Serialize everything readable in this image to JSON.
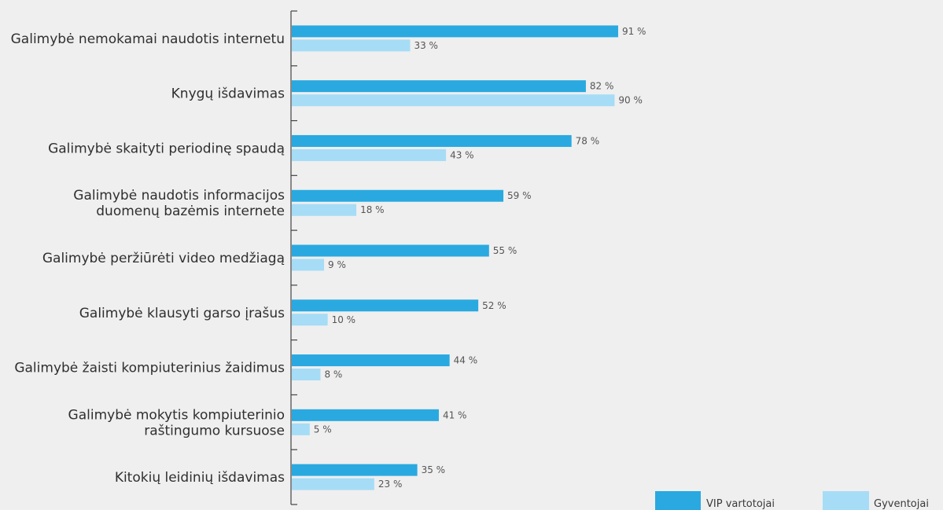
{
  "chart_data": {
    "type": "bar",
    "orientation": "horizontal",
    "categories": [
      [
        "Galimybė nemokamai naudotis internetu"
      ],
      [
        "Knygų išdavimas"
      ],
      [
        "Galimybė skaityti periodinę spaudą"
      ],
      [
        "Galimybė naudotis informacijos",
        "duomenų bazėmis internete"
      ],
      [
        "Galimybė peržiūrėti video medžiagą"
      ],
      [
        "Galimybė klausyti garso įrašus"
      ],
      [
        "Galimybė žaisti kompiuterinius žaidimus"
      ],
      [
        "Galimybė mokytis kompiuterinio",
        "raštingumo kursuose"
      ],
      [
        "Kitokių leidinių išdavimas"
      ]
    ],
    "series": [
      {
        "name": "VIP vartotojai",
        "color": "#29a9e0",
        "values": [
          91,
          82,
          78,
          59,
          55,
          52,
          44,
          41,
          35
        ]
      },
      {
        "name": "Gyventojai",
        "color": "#a6dcf6",
        "values": [
          33,
          90,
          43,
          18,
          9,
          10,
          8,
          5,
          23
        ]
      }
    ],
    "value_suffix": " %",
    "xlim": [
      0,
      100
    ],
    "legend_position": "bottom-right",
    "grid": false
  }
}
